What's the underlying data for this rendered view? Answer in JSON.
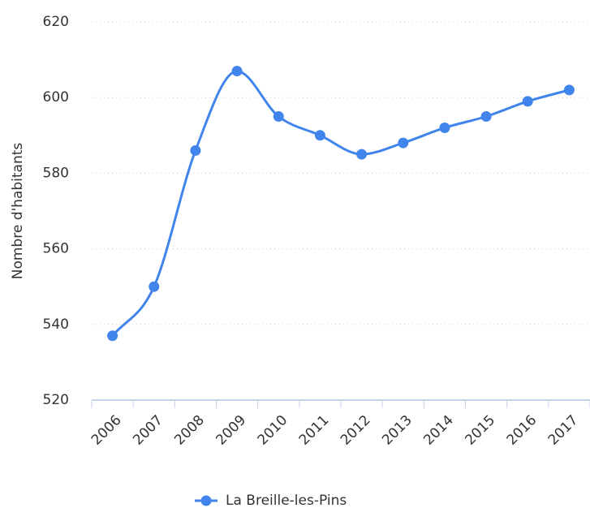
{
  "chart_data": {
    "type": "line",
    "y_label": "Nombre d'habitants",
    "categories": [
      "2006",
      "2007",
      "2008",
      "2009",
      "2010",
      "2011",
      "2012",
      "2013",
      "2014",
      "2015",
      "2016",
      "2017"
    ],
    "series": [
      {
        "name": "La Breille-les-Pins",
        "color": "#4185ec",
        "values": [
          537,
          550,
          586,
          607,
          595,
          590,
          585,
          588,
          592,
          595,
          599,
          602
        ]
      }
    ],
    "ylim": [
      520,
      620
    ],
    "yticks": [
      520,
      540,
      560,
      580,
      600,
      620
    ],
    "grid": true,
    "legend": "bottom"
  }
}
